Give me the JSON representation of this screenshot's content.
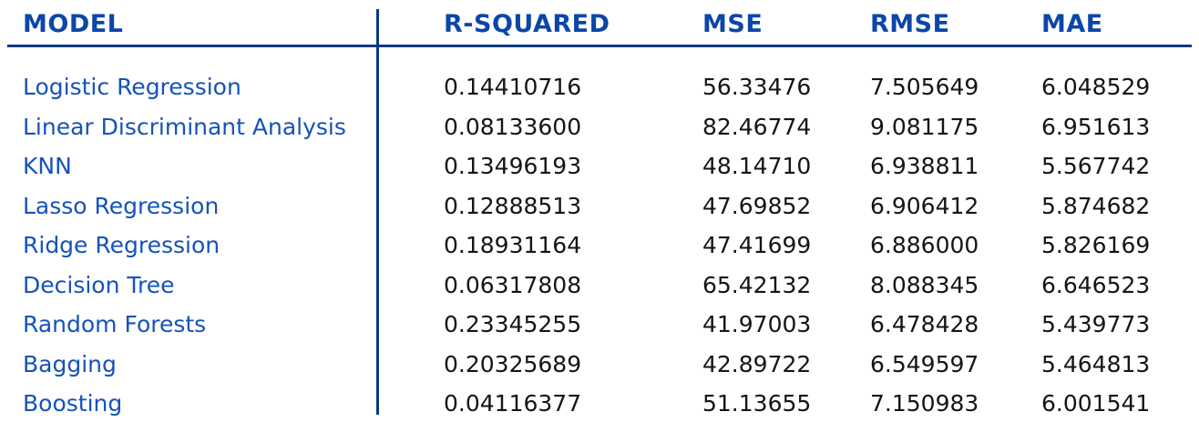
{
  "table": {
    "headers": [
      "MODEL",
      "R-SQUARED",
      "MSE",
      "RMSE",
      "MAE"
    ],
    "rows": [
      {
        "model": "Logistic Regression",
        "r_squared": "0.14410716",
        "mse": "56.33476",
        "rmse": "7.505649",
        "mae": "6.048529"
      },
      {
        "model": "Linear Discriminant Analysis",
        "r_squared": "0.08133600",
        "mse": "82.46774",
        "rmse": "9.081175",
        "mae": "6.951613"
      },
      {
        "model": "KNN",
        "r_squared": "0.13496193",
        "mse": "48.14710",
        "rmse": "6.938811",
        "mae": "5.567742"
      },
      {
        "model": "Lasso Regression",
        "r_squared": "0.12888513",
        "mse": "47.69852",
        "rmse": "6.906412",
        "mae": "5.874682"
      },
      {
        "model": "Ridge Regression",
        "r_squared": "0.18931164",
        "mse": "47.41699",
        "rmse": "6.886000",
        "mae": "5.826169"
      },
      {
        "model": "Decision Tree",
        "r_squared": "0.06317808",
        "mse": "65.42132",
        "rmse": "8.088345",
        "mae": "6.646523"
      },
      {
        "model": "Random Forests",
        "r_squared": "0.23345255",
        "mse": "41.97003",
        "rmse": "6.478428",
        "mae": "5.439773"
      },
      {
        "model": "Bagging",
        "r_squared": "0.20325689",
        "mse": "42.89722",
        "rmse": "6.549597",
        "mae": "5.464813"
      },
      {
        "model": "Boosting",
        "r_squared": "0.04116377",
        "mse": "51.13655",
        "rmse": "7.150983",
        "mae": "6.001541"
      }
    ]
  },
  "colors": {
    "header_text": "#0b46a8",
    "rule": "#0b3a82",
    "model_text": "#1553b8",
    "value_text": "#151515",
    "background": "#ffffff"
  }
}
